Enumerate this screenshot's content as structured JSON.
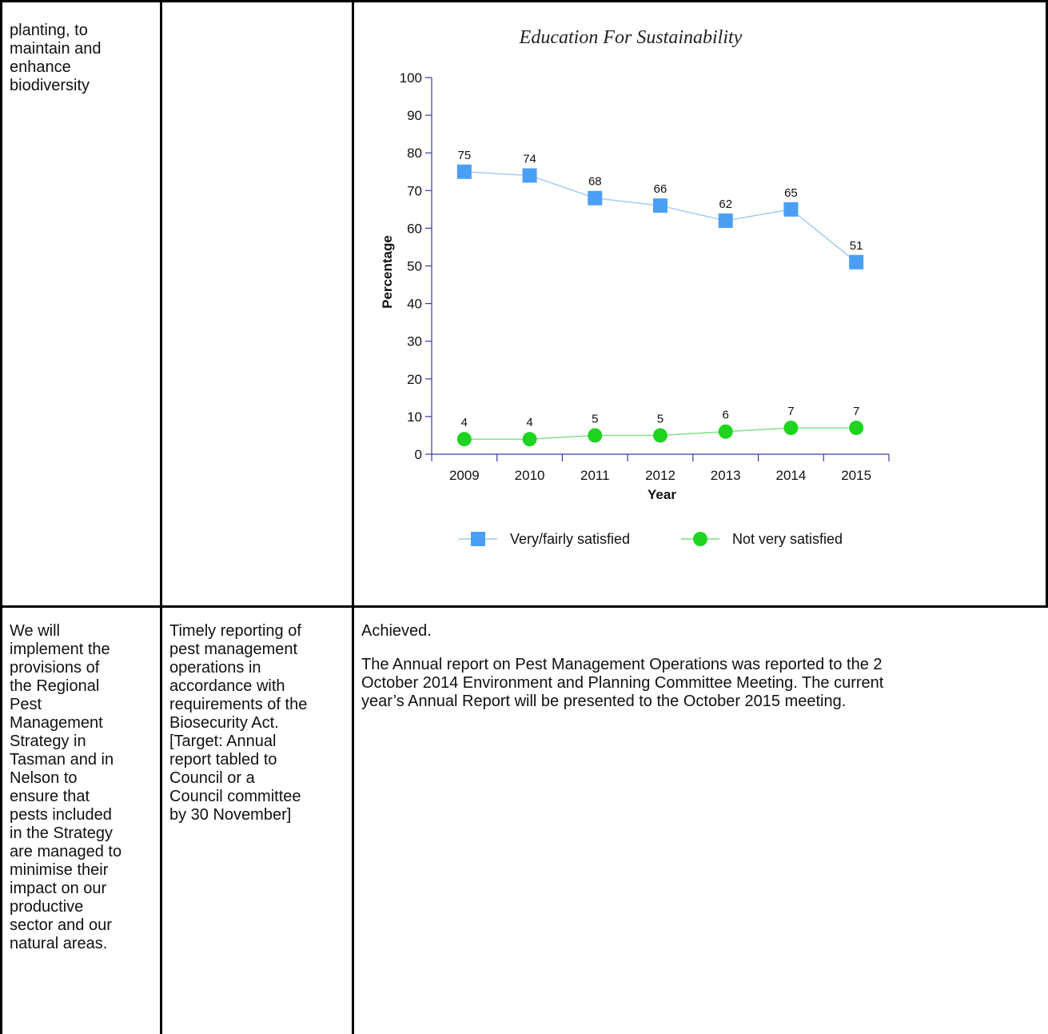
{
  "row1": {
    "col1_text": "planting, to\nmaintain and\nenhance\nbiodiversity",
    "col2_text": ""
  },
  "row2": {
    "col1_text": "We will\nimplement the\nprovisions of\nthe Regional\nPest\nManagement\nStrategy in\nTasman and in\nNelson to\nensure that\npests included\nin the Strategy\nare managed to\nminimise their\nimpact on our\nproductive\nsector and our\nnatural areas.",
    "col2_text": "Timely reporting of\npest management\noperations in\naccordance with\nrequirements of the\nBiosecurity Act.\n[Target: Annual\nreport tabled to\nCouncil or a\nCouncil committee\nby 30 November]",
    "col3_status": "Achieved.",
    "col3_paragraph": "The Annual report on Pest Management Operations was reported to the 2\nOctober 2014 Environment and Planning Committee Meeting.  The current\nyear’s Annual Report will be presented to the October 2015 meeting."
  },
  "chart_data": {
    "type": "line",
    "title": "Education For Sustainability",
    "xlabel": "Year",
    "ylabel": "Percentage",
    "categories": [
      "2009",
      "2010",
      "2011",
      "2012",
      "2013",
      "2014",
      "2015"
    ],
    "ylim": [
      0,
      100
    ],
    "yticks": [
      0,
      10,
      20,
      30,
      40,
      50,
      60,
      70,
      80,
      90,
      100
    ],
    "grid": false,
    "legend_position": "bottom",
    "series": [
      {
        "name": "Very/fairly satisfied",
        "values": [
          75,
          74,
          68,
          66,
          62,
          65,
          51
        ],
        "marker": "square",
        "color": "#4a9ff5",
        "line_color": "#9cc9f5"
      },
      {
        "name": "Not very satisfied",
        "values": [
          4,
          4,
          5,
          5,
          6,
          7,
          7
        ],
        "marker": "circle",
        "color": "#1ed41e",
        "line_color": "#7fe07f"
      }
    ],
    "axis_color": "#3a3aa8"
  }
}
